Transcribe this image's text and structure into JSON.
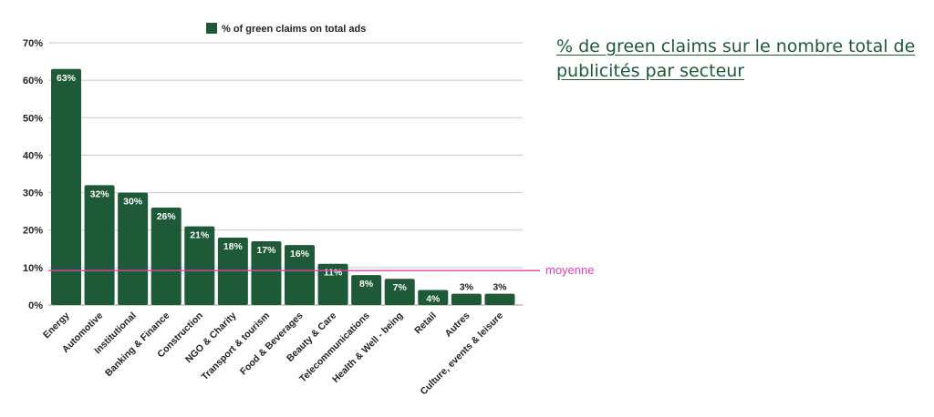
{
  "side_title": "% de green claims sur le nombre total de publicités par secteur",
  "chart_data": {
    "type": "bar",
    "title": "",
    "xlabel": "",
    "ylabel": "",
    "ylim": [
      0,
      70
    ],
    "yticks": [
      0,
      10,
      20,
      30,
      40,
      50,
      60,
      70
    ],
    "ytick_suffix": "%",
    "grid": true,
    "legend_position": "top-center",
    "series": [
      {
        "name": "% of green claims on total ads",
        "color": "#1e5a38",
        "values": [
          63,
          32,
          30,
          26,
          21,
          18,
          17,
          16,
          11,
          8,
          7,
          4,
          3,
          3
        ],
        "labels": [
          "63%",
          "32%",
          "30%",
          "26%",
          "21%",
          "18%",
          "17%",
          "16%",
          "11%",
          "8%",
          "7%",
          "4%",
          "3%",
          "3%"
        ]
      }
    ],
    "categories": [
      "Energy",
      "Automotive",
      "Institutional",
      "Banking & Finance",
      "Construction",
      "NGO & Charity",
      "Transport & tourism",
      "Food & Beverages",
      "Beauty & Care",
      "Telecommunications",
      "Health & Well - being",
      "Retail",
      "Autres",
      "Culture, events & leisure"
    ],
    "reference_line": {
      "label": "moyenne",
      "value": 9.2,
      "color": "#e040b0"
    }
  }
}
